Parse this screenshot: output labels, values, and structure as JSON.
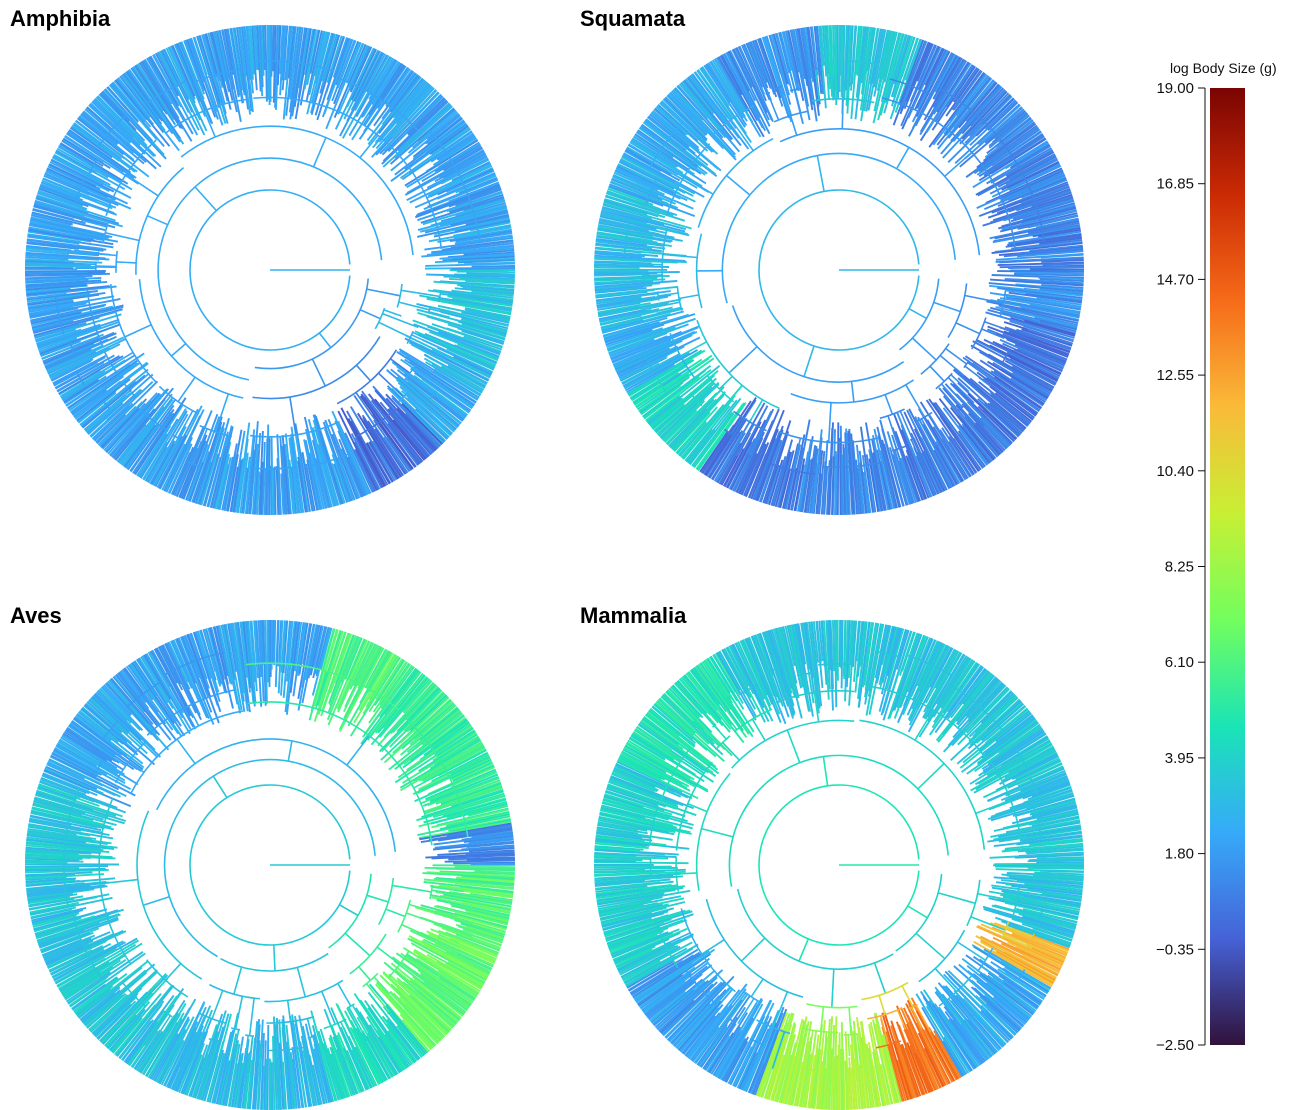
{
  "chart_data": {
    "type": "circular-phylogeny",
    "legend": {
      "title": "log Body Size (g)",
      "min": -2.5,
      "max": 19.0,
      "ticks": [
        "19.00",
        "16.85",
        "14.70",
        "12.55",
        "10.40",
        "8.25",
        "6.10",
        "3.95",
        "1.80",
        "−0.35",
        "−2.50"
      ],
      "tick_values": [
        19.0,
        16.85,
        14.7,
        12.55,
        10.4,
        8.25,
        6.1,
        3.95,
        1.8,
        -0.35,
        -2.5
      ],
      "colormap": [
        "#30123b",
        "#4662d7",
        "#36aaf9",
        "#1ae4b6",
        "#72fe5e",
        "#c8ef34",
        "#faba39",
        "#f66b19",
        "#ca2a04",
        "#7a0403"
      ]
    },
    "panels": [
      {
        "title": "Amphibia",
        "root_value": 2.6,
        "ring_segments": [
          {
            "from_deg": 0,
            "to_deg": 25,
            "value": 3.2
          },
          {
            "from_deg": 25,
            "to_deg": 45,
            "value": 2.4
          },
          {
            "from_deg": 45,
            "to_deg": 65,
            "value": 0.4
          },
          {
            "from_deg": 65,
            "to_deg": 90,
            "value": 2.0
          },
          {
            "from_deg": 90,
            "to_deg": 180,
            "value": 2.0
          },
          {
            "from_deg": 180,
            "to_deg": 270,
            "value": 2.1
          },
          {
            "from_deg": 270,
            "to_deg": 360,
            "value": 2.1
          }
        ]
      },
      {
        "title": "Squamata",
        "root_value": 2.8,
        "ring_segments": [
          {
            "from_deg": 0,
            "to_deg": 15,
            "value": 1.5
          },
          {
            "from_deg": 15,
            "to_deg": 45,
            "value": 0.6
          },
          {
            "from_deg": 45,
            "to_deg": 75,
            "value": 0.9
          },
          {
            "from_deg": 75,
            "to_deg": 100,
            "value": 1.2
          },
          {
            "from_deg": 100,
            "to_deg": 125,
            "value": 0.7
          },
          {
            "from_deg": 125,
            "to_deg": 150,
            "value": 4.2
          },
          {
            "from_deg": 150,
            "to_deg": 165,
            "value": 2.6
          },
          {
            "from_deg": 165,
            "to_deg": 200,
            "value": 3.0
          },
          {
            "from_deg": 200,
            "to_deg": 240,
            "value": 2.4
          },
          {
            "from_deg": 240,
            "to_deg": 265,
            "value": 1.5
          },
          {
            "from_deg": 265,
            "to_deg": 290,
            "value": 3.5
          },
          {
            "from_deg": 290,
            "to_deg": 330,
            "value": 1.2
          },
          {
            "from_deg": 330,
            "to_deg": 360,
            "value": 1.0
          }
        ]
      },
      {
        "title": "Aves",
        "root_value": 3.6,
        "ring_segments": [
          {
            "from_deg": 0,
            "to_deg": 20,
            "value": 6.2
          },
          {
            "from_deg": 20,
            "to_deg": 50,
            "value": 6.6
          },
          {
            "from_deg": 50,
            "to_deg": 75,
            "value": 4.2
          },
          {
            "from_deg": 75,
            "to_deg": 120,
            "value": 3.0
          },
          {
            "from_deg": 120,
            "to_deg": 165,
            "value": 3.4
          },
          {
            "from_deg": 165,
            "to_deg": 200,
            "value": 3.4
          },
          {
            "from_deg": 200,
            "to_deg": 230,
            "value": 2.3
          },
          {
            "from_deg": 230,
            "to_deg": 285,
            "value": 2.0
          },
          {
            "from_deg": 285,
            "to_deg": 305,
            "value": 6.0
          },
          {
            "from_deg": 305,
            "to_deg": 350,
            "value": 5.4
          },
          {
            "from_deg": 350,
            "to_deg": 360,
            "value": 1.2
          }
        ]
      },
      {
        "title": "Mammalia",
        "root_value": 5.0,
        "ring_segments": [
          {
            "from_deg": 0,
            "to_deg": 20,
            "value": 3.3
          },
          {
            "from_deg": 20,
            "to_deg": 30,
            "value": 12.0
          },
          {
            "from_deg": 30,
            "to_deg": 45,
            "value": 2.2
          },
          {
            "from_deg": 45,
            "to_deg": 60,
            "value": 2.5
          },
          {
            "from_deg": 60,
            "to_deg": 75,
            "value": 14.0
          },
          {
            "from_deg": 75,
            "to_deg": 110,
            "value": 8.5
          },
          {
            "from_deg": 110,
            "to_deg": 150,
            "value": 2.0
          },
          {
            "from_deg": 150,
            "to_deg": 205,
            "value": 3.8
          },
          {
            "from_deg": 205,
            "to_deg": 240,
            "value": 4.6
          },
          {
            "from_deg": 240,
            "to_deg": 310,
            "value": 3.3
          },
          {
            "from_deg": 310,
            "to_deg": 360,
            "value": 3.4
          }
        ]
      }
    ]
  }
}
